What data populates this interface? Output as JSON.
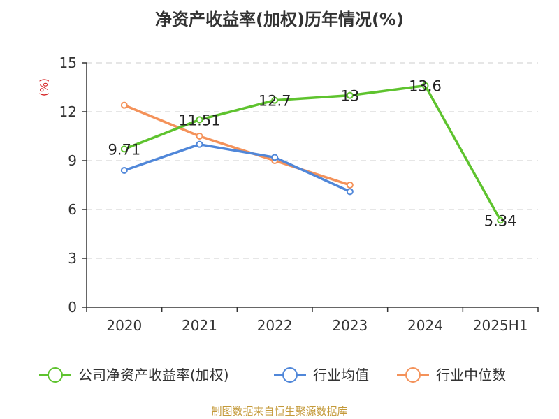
{
  "chart_data": {
    "type": "line",
    "title": "净资产收益率(加权)历年情况(%)",
    "ylabel": "(%)",
    "xlabel": "",
    "categories": [
      "2020",
      "2021",
      "2022",
      "2023",
      "2024",
      "2025H1"
    ],
    "ylim": [
      0,
      15
    ],
    "yticks": [
      "0",
      "3",
      "6",
      "9",
      "12",
      "15"
    ],
    "grid": true,
    "legend_position": "bottom",
    "series": [
      {
        "name": "公司净资产收益率(加权)",
        "color": "#5ec32e",
        "values": [
          9.71,
          11.51,
          12.7,
          13,
          13.6,
          5.34
        ],
        "labels": [
          "9.71",
          "11.51",
          "12.7",
          "13",
          "13.6",
          "5.34"
        ]
      },
      {
        "name": "行业均值",
        "color": "#5087d9",
        "values": [
          8.4,
          10.0,
          9.2,
          7.1,
          null,
          null
        ]
      },
      {
        "name": "行业中位数",
        "color": "#f4925a",
        "values": [
          12.4,
          10.5,
          9.0,
          7.5,
          null,
          null
        ]
      }
    ]
  },
  "colors": {
    "unit_label": "#d62728",
    "source_text": "#c49a3a"
  },
  "source": "制图数据来自恒生聚源数据库"
}
